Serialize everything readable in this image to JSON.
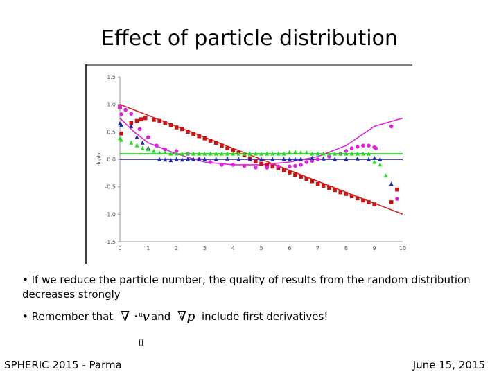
{
  "slide": {
    "title": "Effect of particle distribution",
    "bullet1": "• If we reduce the particle number, the quality of results from the random distribution decreases strongly",
    "bullet2_prefix": "• Remember that",
    "bullet2_and": "and",
    "bullet2_suffix": "include first derivatives!",
    "math_div_v": "∇ · v",
    "math_grad_p": "∇p",
    "footer_left": "SPHERIC 2015 - Parma",
    "footer_right": "June 15, 2015"
  },
  "chart_data": {
    "type": "scatter",
    "title": "",
    "xlabel": "",
    "ylabel": "du/dx",
    "xlim": [
      0,
      10
    ],
    "ylim": [
      -1.5,
      1.5
    ],
    "x_ticks": [
      0,
      1,
      2,
      3,
      4,
      5,
      6,
      7,
      8,
      9,
      10
    ],
    "y_ticks": [
      1.5,
      1.0,
      0.5,
      0.0,
      -0.5,
      -1.0,
      -1.5
    ],
    "y_tick_labels": [
      "1.5",
      "1.0",
      "0.5",
      "0.0",
      "-0.5",
      "-1.0",
      "-1.5"
    ],
    "reference_lines": [
      {
        "color": "#d62020",
        "points": [
          [
            0,
            1.0
          ],
          [
            10,
            -1.0
          ]
        ]
      },
      {
        "color": "#00c800",
        "points": [
          [
            0,
            0.1
          ],
          [
            10,
            0.1
          ]
        ]
      },
      {
        "color": "#1a1aa0",
        "points": [
          [
            0,
            0.0
          ],
          [
            10,
            0.0
          ]
        ]
      },
      {
        "color": "#e020e0",
        "points": [
          [
            0,
            0.75
          ],
          [
            0.5,
            0.5
          ],
          [
            1,
            0.3
          ],
          [
            2,
            0.1
          ],
          [
            3,
            -0.05
          ],
          [
            4,
            -0.1
          ],
          [
            5,
            -0.1
          ],
          [
            6,
            -0.05
          ],
          [
            7,
            0.05
          ],
          [
            8,
            0.25
          ],
          [
            9,
            0.6
          ],
          [
            10,
            0.75
          ]
        ]
      }
    ],
    "series": [
      {
        "marker": "square",
        "color": "#cc1111",
        "x": [
          0.0,
          0.05,
          0.4,
          0.6,
          0.75,
          0.9,
          1.2,
          1.4,
          1.6,
          1.8,
          2.0,
          2.2,
          2.4,
          2.6,
          2.8,
          3.0,
          3.2,
          3.4,
          3.6,
          3.8,
          4.0,
          4.2,
          4.4,
          4.6,
          4.8,
          5.0,
          5.2,
          5.4,
          5.6,
          5.8,
          6.0,
          6.2,
          6.4,
          6.6,
          6.8,
          7.0,
          7.2,
          7.4,
          7.6,
          7.8,
          8.0,
          8.2,
          8.4,
          8.6,
          8.8,
          9.0,
          9.6,
          9.8
        ],
        "y": [
          0.95,
          0.47,
          0.66,
          0.7,
          0.73,
          0.75,
          0.72,
          0.7,
          0.66,
          0.62,
          0.58,
          0.55,
          0.5,
          0.46,
          0.42,
          0.38,
          0.34,
          0.3,
          0.25,
          0.2,
          0.16,
          0.12,
          0.08,
          0.02,
          -0.04,
          -0.08,
          -0.1,
          -0.13,
          -0.16,
          -0.2,
          -0.24,
          -0.28,
          -0.32,
          -0.36,
          -0.4,
          -0.45,
          -0.48,
          -0.52,
          -0.56,
          -0.6,
          -0.63,
          -0.67,
          -0.71,
          -0.75,
          -0.78,
          -0.82,
          -0.78,
          -0.55
        ]
      },
      {
        "marker": "circle",
        "color": "#e020e0",
        "x": [
          0.0,
          0.05,
          0.2,
          0.4,
          0.7,
          1.0,
          1.3,
          1.6,
          2.0,
          2.4,
          2.8,
          3.2,
          3.6,
          4.0,
          4.4,
          4.8,
          5.2,
          5.6,
          6.0,
          6.2,
          6.4,
          6.6,
          6.8,
          7.0,
          7.4,
          7.8,
          8.0,
          8.2,
          8.4,
          8.6,
          8.8,
          9.0,
          9.05,
          9.6,
          9.8
        ],
        "y": [
          0.95,
          0.82,
          0.9,
          0.83,
          0.55,
          0.4,
          0.25,
          0.18,
          0.15,
          0.1,
          0.0,
          -0.05,
          -0.1,
          -0.1,
          -0.12,
          -0.15,
          -0.15,
          -0.13,
          -0.13,
          -0.12,
          -0.1,
          -0.05,
          -0.03,
          0.0,
          0.05,
          0.1,
          0.15,
          0.2,
          0.23,
          0.25,
          0.25,
          0.22,
          0.2,
          0.6,
          -0.72
        ]
      },
      {
        "marker": "triangle",
        "color": "#1a2aa8",
        "x": [
          0.0,
          0.05,
          0.4,
          0.6,
          0.8,
          1.0,
          1.4,
          1.6,
          1.8,
          2.0,
          2.2,
          2.4,
          2.6,
          2.8,
          3.0,
          3.4,
          3.8,
          4.2,
          4.6,
          5.0,
          5.4,
          5.8,
          6.0,
          6.2,
          6.4,
          6.8,
          7.2,
          7.6,
          8.0,
          8.4,
          8.8,
          9.0,
          9.2,
          9.6
        ],
        "y": [
          0.65,
          0.62,
          0.6,
          0.4,
          0.3,
          0.2,
          0.0,
          -0.01,
          -0.02,
          0.0,
          -0.01,
          0.0,
          0.0,
          0.0,
          0.0,
          0.0,
          0.01,
          0.0,
          0.0,
          0.0,
          0.0,
          0.0,
          0.0,
          0.0,
          0.0,
          0.02,
          0.01,
          0.0,
          0.0,
          0.01,
          0.0,
          0.02,
          0.0,
          -0.45
        ]
      },
      {
        "marker": "triangle",
        "color": "#22dd22",
        "x": [
          0.0,
          0.05,
          0.4,
          0.6,
          0.8,
          1.0,
          1.2,
          1.4,
          1.6,
          1.8,
          2.0,
          2.2,
          2.4,
          2.6,
          2.8,
          3.0,
          3.2,
          3.4,
          3.6,
          3.8,
          4.0,
          4.2,
          4.4,
          4.6,
          4.8,
          5.0,
          5.2,
          5.4,
          5.6,
          5.8,
          6.0,
          6.2,
          6.4,
          6.6,
          6.8,
          7.0,
          7.2,
          7.4,
          7.6,
          7.8,
          8.0,
          8.2,
          8.4,
          8.6,
          8.8,
          9.0,
          9.2,
          9.4
        ],
        "y": [
          0.38,
          0.35,
          0.3,
          0.25,
          0.2,
          0.18,
          0.15,
          0.12,
          0.12,
          0.1,
          0.1,
          0.1,
          0.1,
          0.1,
          0.1,
          0.1,
          0.1,
          0.1,
          0.1,
          0.1,
          0.1,
          0.1,
          0.1,
          0.1,
          0.1,
          0.1,
          0.1,
          0.1,
          0.1,
          0.1,
          0.13,
          0.13,
          0.12,
          0.12,
          0.1,
          0.1,
          0.1,
          0.1,
          0.1,
          0.1,
          0.1,
          0.1,
          0.1,
          0.1,
          0.1,
          -0.05,
          -0.1,
          -0.3
        ]
      }
    ]
  }
}
